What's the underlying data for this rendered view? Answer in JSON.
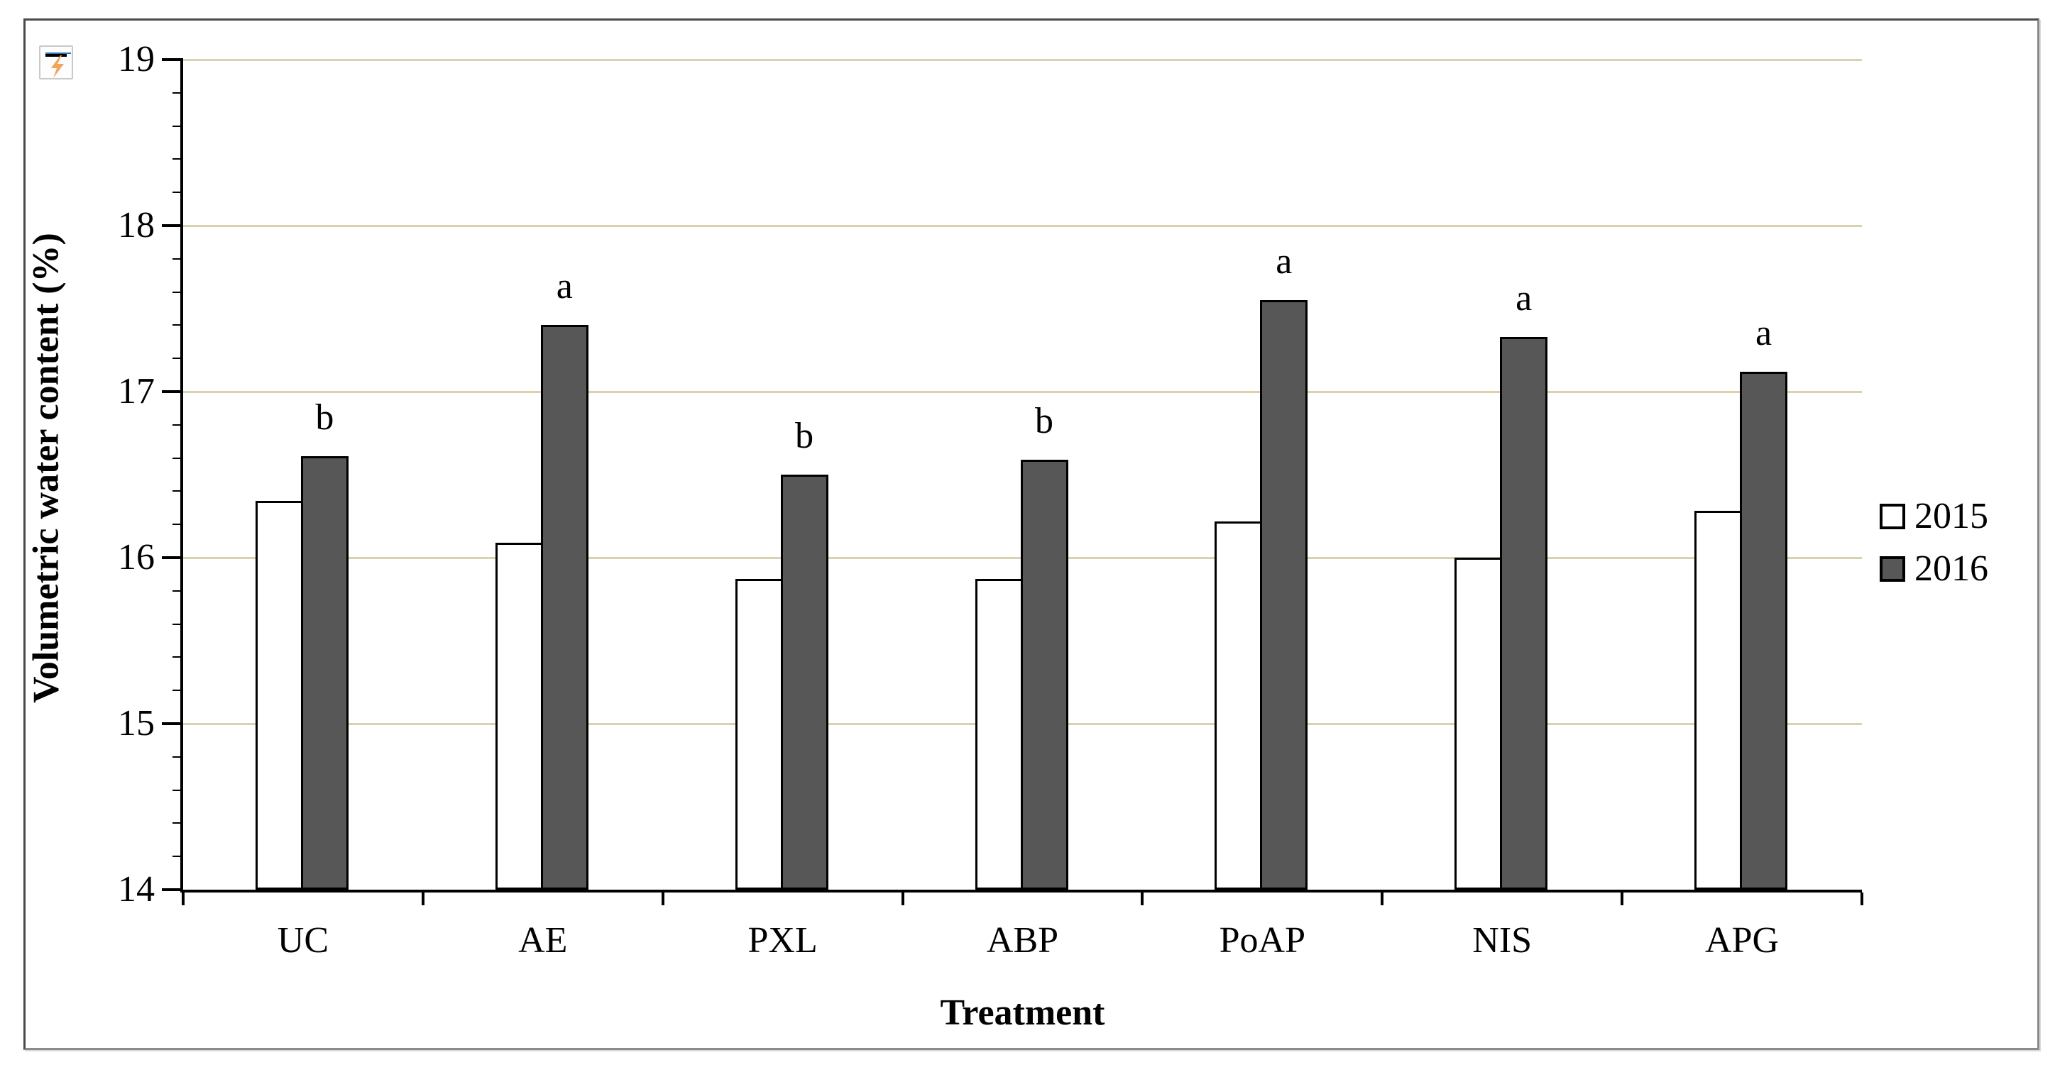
{
  "window": {
    "flash_icon_name": "flash-fill-options"
  },
  "chart_data": {
    "type": "bar",
    "title": "",
    "xlabel": "Treatment",
    "ylabel": "Volumetric water content (%)",
    "categories": [
      "UC",
      "AE",
      "PXL",
      "ABP",
      "PoAP",
      "NIS",
      "APG"
    ],
    "series": [
      {
        "name": "2015",
        "color": "#ffffff",
        "values": [
          16.34,
          16.09,
          15.87,
          15.87,
          16.22,
          16.0,
          16.28
        ]
      },
      {
        "name": "2016",
        "color": "#575757",
        "values": [
          16.61,
          17.4,
          16.5,
          16.59,
          17.55,
          17.33,
          17.12
        ]
      }
    ],
    "significance_labels": {
      "series": "2016",
      "labels": [
        "b",
        "a",
        "b",
        "b",
        "a",
        "a",
        "a"
      ]
    },
    "ylim": [
      14,
      19
    ],
    "yticks": [
      14,
      15,
      16,
      17,
      18,
      19
    ],
    "minor_tick_step": 0.2,
    "grid": "major-horizontal",
    "gridline_color": "#d9d2ae",
    "bar_border_color": "#000000",
    "legend_position": "right",
    "legend_entries": [
      "2015",
      "2016"
    ]
  }
}
